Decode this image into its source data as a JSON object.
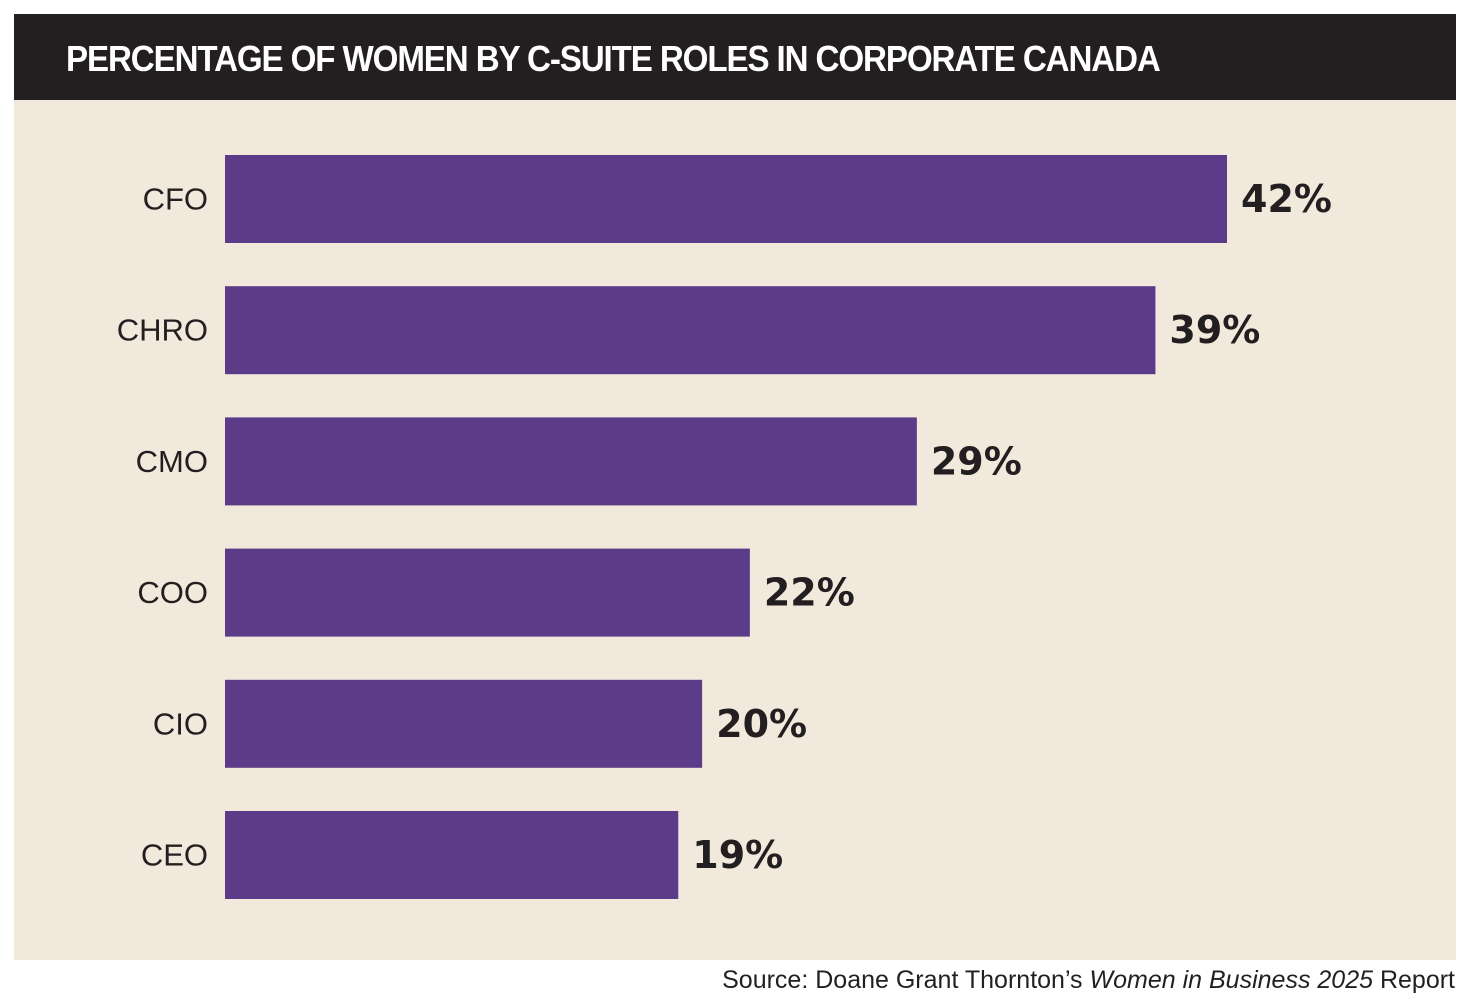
{
  "title": "PERCENTAGE OF WOMEN BY C-SUITE ROLES IN CORPORATE CANADA",
  "source": {
    "prefix": "Source:",
    "publisher": "Doane Grant Thornton’s",
    "report_title": "Women in Business 2025",
    "suffix": "Report"
  },
  "colors": {
    "bar": "#5c3b89",
    "panel": "#f1e9dc",
    "title_bar": "#231f20",
    "text": "#231f20"
  },
  "chart_data": {
    "type": "bar",
    "orientation": "horizontal",
    "title": "PERCENTAGE OF WOMEN BY C-SUITE ROLES IN CORPORATE CANADA",
    "categories": [
      "CFO",
      "CHRO",
      "CMO",
      "COO",
      "CIO",
      "CEO"
    ],
    "values": [
      42,
      39,
      29,
      22,
      20,
      19
    ],
    "value_labels": [
      "42%",
      "39%",
      "29%",
      "22%",
      "20%",
      "19%"
    ],
    "unit": "%",
    "xlabel": "",
    "ylabel": "",
    "xlim": [
      0,
      42
    ],
    "grid": false,
    "legend": "none"
  }
}
